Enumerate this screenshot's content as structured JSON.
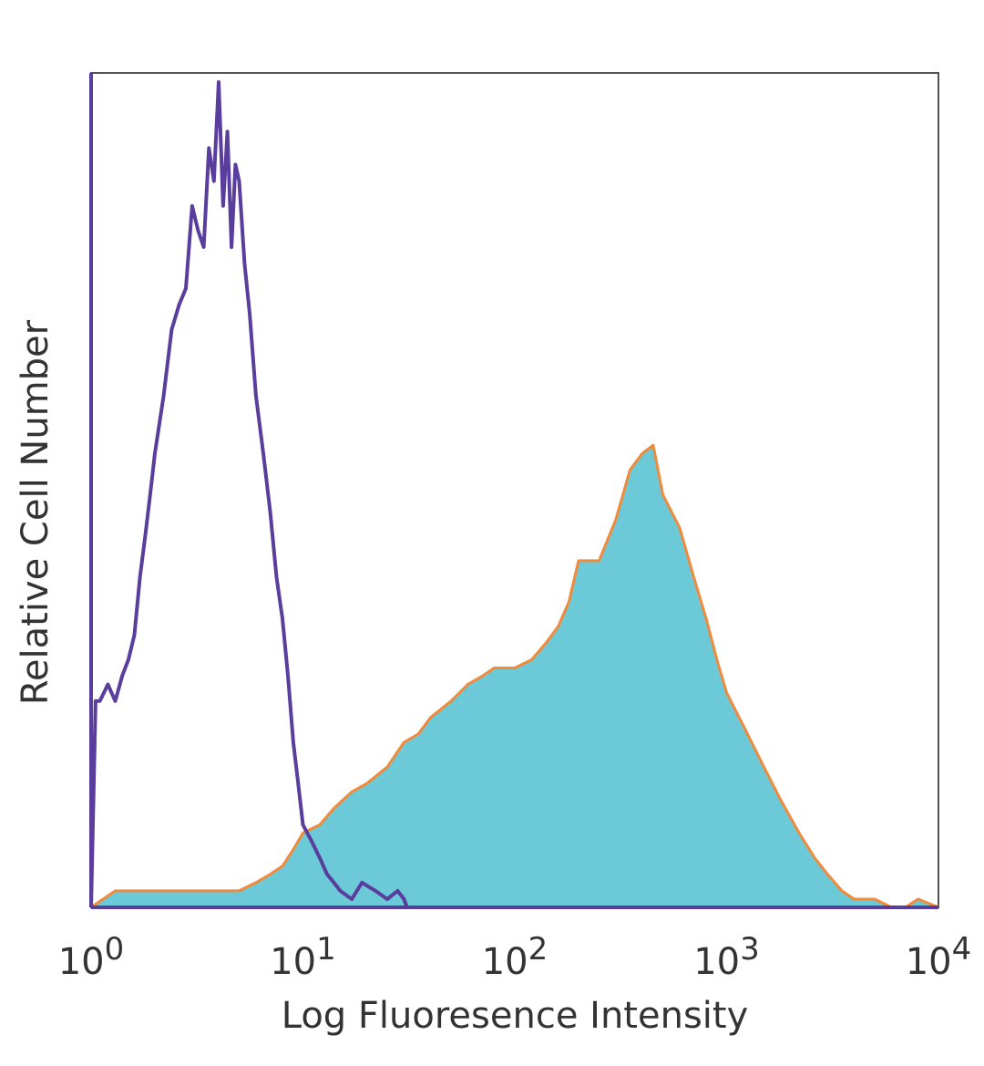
{
  "chart_data": {
    "type": "area",
    "title": "",
    "xlabel": "Log Fluoresence Intensity",
    "ylabel": "Relative Cell Number",
    "xscale": "log",
    "xlim": [
      1,
      10000
    ],
    "ylim": [
      0,
      100
    ],
    "grid": false,
    "legend": "none",
    "x_ticks": [
      {
        "base": "10",
        "exp": "0",
        "value": 1
      },
      {
        "base": "10",
        "exp": "1",
        "value": 10
      },
      {
        "base": "10",
        "exp": "2",
        "value": 100
      },
      {
        "base": "10",
        "exp": "3",
        "value": 1000
      },
      {
        "base": "10",
        "exp": "4",
        "value": 10000
      }
    ],
    "series": [
      {
        "style": "filled histogram",
        "fill_color": "#6cc9d7",
        "edge_color": "#f08a3c",
        "x": [
          1,
          1.3,
          1.6,
          2,
          2.5,
          3,
          4,
          5,
          6,
          7,
          8,
          9,
          10,
          12,
          14,
          17,
          20,
          25,
          30,
          35,
          40,
          50,
          60,
          70,
          80,
          100,
          120,
          140,
          160,
          180,
          200,
          250,
          300,
          350,
          400,
          450,
          500,
          600,
          700,
          800,
          900,
          1000,
          1200,
          1500,
          1800,
          2200,
          2600,
          3000,
          3500,
          4000,
          5000,
          6000,
          7000,
          8000,
          10000
        ],
        "y": [
          0,
          2,
          2,
          2,
          2,
          2,
          2,
          2,
          3,
          4,
          5,
          7,
          9,
          10,
          12,
          14,
          15,
          17,
          20,
          21,
          23,
          25,
          27,
          28,
          29,
          29,
          30,
          32,
          34,
          37,
          42,
          42,
          47,
          53,
          55,
          56,
          50,
          46,
          40,
          35,
          30,
          26,
          22,
          17,
          13,
          9,
          6,
          4,
          2,
          1,
          1,
          0,
          0,
          1,
          0
        ]
      },
      {
        "style": "outline histogram",
        "line_color": "#5a3e9e",
        "x": [
          1,
          1.05,
          1.1,
          1.2,
          1.3,
          1.4,
          1.5,
          1.6,
          1.7,
          1.8,
          1.9,
          2,
          2.2,
          2.4,
          2.6,
          2.8,
          3,
          3.2,
          3.4,
          3.6,
          3.8,
          4,
          4.2,
          4.4,
          4.6,
          4.8,
          5,
          5.3,
          5.6,
          6,
          6.5,
          7,
          7.5,
          8,
          8.5,
          9,
          9.5,
          10,
          11,
          12,
          13,
          14,
          15,
          17,
          19,
          22,
          25,
          28,
          30,
          31,
          35
        ],
        "y": [
          0,
          25,
          25,
          27,
          25,
          28,
          30,
          33,
          40,
          45,
          50,
          55,
          62,
          70,
          73,
          75,
          85,
          82,
          80,
          92,
          88,
          100,
          85,
          94,
          80,
          90,
          88,
          78,
          72,
          62,
          55,
          48,
          40,
          35,
          28,
          20,
          15,
          10,
          8,
          6,
          4,
          3,
          2,
          1,
          3,
          2,
          1,
          2,
          1,
          0,
          0
        ]
      }
    ]
  }
}
